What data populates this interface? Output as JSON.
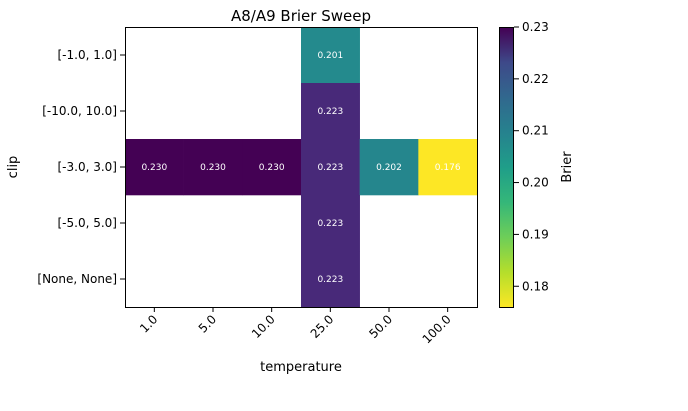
{
  "chart_data": {
    "type": "heatmap",
    "title": "A8/A9 Brier Sweep",
    "xlabel": "temperature",
    "ylabel": "clip",
    "x_categories": [
      "1.0",
      "5.0",
      "10.0",
      "25.0",
      "50.0",
      "100.0"
    ],
    "y_categories": [
      "[-1.0, 1.0]",
      "[-10.0, 10.0]",
      "[-3.0, 3.0]",
      "[-5.0, 5.0]",
      "[None, None]"
    ],
    "cells": [
      {
        "x": "25.0",
        "y": "[-1.0, 1.0]",
        "value": 0.201,
        "label": "0.201"
      },
      {
        "x": "25.0",
        "y": "[-10.0, 10.0]",
        "value": 0.223,
        "label": "0.223"
      },
      {
        "x": "1.0",
        "y": "[-3.0, 3.0]",
        "value": 0.23,
        "label": "0.230"
      },
      {
        "x": "5.0",
        "y": "[-3.0, 3.0]",
        "value": 0.23,
        "label": "0.230"
      },
      {
        "x": "10.0",
        "y": "[-3.0, 3.0]",
        "value": 0.23,
        "label": "0.230"
      },
      {
        "x": "25.0",
        "y": "[-3.0, 3.0]",
        "value": 0.223,
        "label": "0.223"
      },
      {
        "x": "50.0",
        "y": "[-3.0, 3.0]",
        "value": 0.202,
        "label": "0.202"
      },
      {
        "x": "100.0",
        "y": "[-3.0, 3.0]",
        "value": 0.176,
        "label": "0.176"
      },
      {
        "x": "25.0",
        "y": "[-5.0, 5.0]",
        "value": 0.223,
        "label": "0.223"
      },
      {
        "x": "25.0",
        "y": "[None, None]",
        "value": 0.223,
        "label": "0.223"
      }
    ],
    "colorbar": {
      "label": "Brier",
      "colormap": "viridis_r",
      "vmin": 0.176,
      "vmax": 0.23,
      "ticks": [
        0.18,
        0.19,
        0.2,
        0.21,
        0.22,
        0.23
      ],
      "tick_labels": [
        "0.18",
        "0.19",
        "0.20",
        "0.21",
        "0.22",
        "0.23"
      ]
    },
    "missing_cells": "blank",
    "grid": false
  }
}
